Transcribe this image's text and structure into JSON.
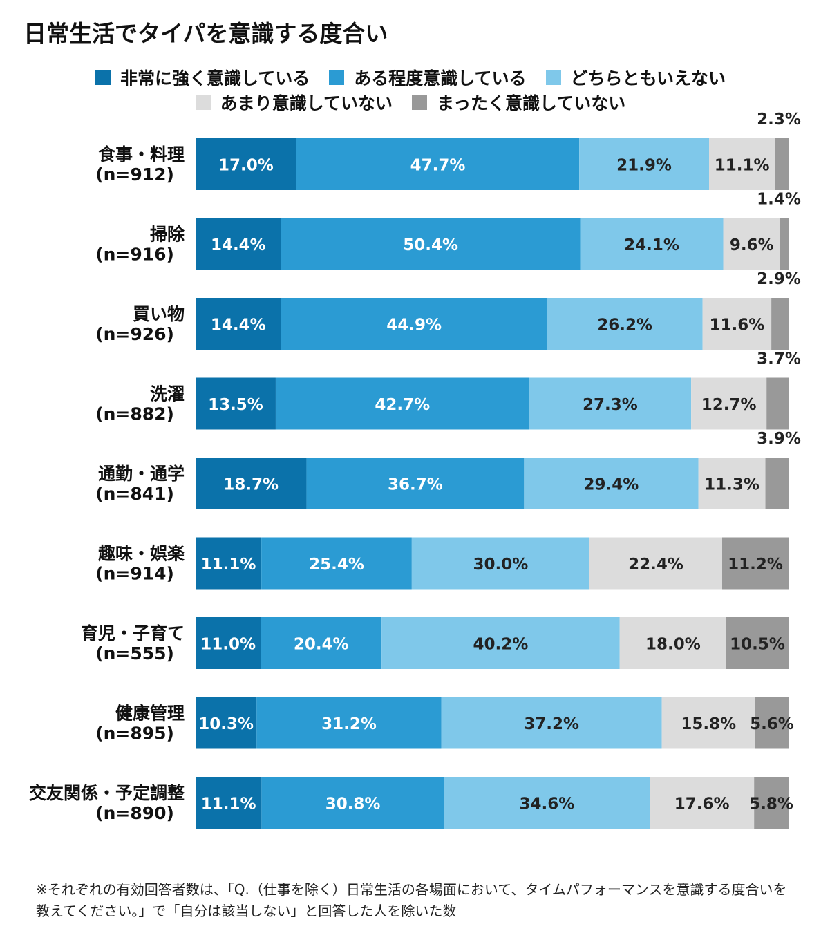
{
  "chart_data": {
    "type": "bar",
    "orientation": "horizontal",
    "stacked": true,
    "percent": true,
    "title": "日常生活でタイパを意識する度合い",
    "series_names": [
      "非常に強く意識している",
      "ある程度意識している",
      "どちらともいえない",
      "あまり意識していない",
      "まったく意識していない"
    ],
    "colors": [
      "#0b72aa",
      "#2b9bd3",
      "#7fc8ea",
      "#dcdcdc",
      "#999999"
    ],
    "label_colors": [
      "#ffffff",
      "#ffffff",
      "#222222",
      "#222222",
      "#222222"
    ],
    "rows": [
      {
        "name": "食事・料理",
        "n": "(n=912)",
        "values": [
          17.0,
          47.7,
          21.9,
          11.1,
          2.3
        ],
        "labels": [
          "17.0%",
          "47.7%",
          "21.9%",
          "11.1%",
          "2.3%"
        ],
        "last_outside": true
      },
      {
        "name": "掃除",
        "n": "(n=916)",
        "values": [
          14.4,
          50.4,
          24.1,
          9.6,
          1.4
        ],
        "labels": [
          "14.4%",
          "50.4%",
          "24.1%",
          "9.6%",
          "1.4%"
        ],
        "last_outside": true
      },
      {
        "name": "買い物",
        "n": "(n=926)",
        "values": [
          14.4,
          44.9,
          26.2,
          11.6,
          2.9
        ],
        "labels": [
          "14.4%",
          "44.9%",
          "26.2%",
          "11.6%",
          "2.9%"
        ],
        "last_outside": true
      },
      {
        "name": "洗濯",
        "n": "(n=882)",
        "values": [
          13.5,
          42.7,
          27.3,
          12.7,
          3.7
        ],
        "labels": [
          "13.5%",
          "42.7%",
          "27.3%",
          "12.7%",
          "3.7%"
        ],
        "last_outside": true
      },
      {
        "name": "通勤・通学",
        "n": "(n=841)",
        "values": [
          18.7,
          36.7,
          29.4,
          11.3,
          3.9
        ],
        "labels": [
          "18.7%",
          "36.7%",
          "29.4%",
          "11.3%",
          "3.9%"
        ],
        "last_outside": true
      },
      {
        "name": "趣味・娯楽",
        "n": "(n=914)",
        "values": [
          11.1,
          25.4,
          30.0,
          22.4,
          11.2
        ],
        "labels": [
          "11.1%",
          "25.4%",
          "30.0%",
          "22.4%",
          "11.2%"
        ],
        "last_outside": false
      },
      {
        "name": "育児・子育て",
        "n": "(n=555)",
        "values": [
          11.0,
          20.4,
          40.2,
          18.0,
          10.5
        ],
        "labels": [
          "11.0%",
          "20.4%",
          "40.2%",
          "18.0%",
          "10.5%"
        ],
        "last_outside": false
      },
      {
        "name": "健康管理",
        "n": "(n=895)",
        "values": [
          10.3,
          31.2,
          37.2,
          15.8,
          5.6
        ],
        "labels": [
          "10.3%",
          "31.2%",
          "37.2%",
          "15.8%",
          "5.6%"
        ],
        "last_outside": false
      },
      {
        "name": "交友関係・予定調整",
        "n": "(n=890)",
        "values": [
          11.1,
          30.8,
          34.6,
          17.6,
          5.8
        ],
        "labels": [
          "11.1%",
          "30.8%",
          "34.6%",
          "17.6%",
          "5.8%"
        ],
        "last_outside": false
      }
    ],
    "xlim": [
      0,
      100
    ]
  },
  "footnote": "※それぞれの有効回答者数は、「Q.（仕事を除く）日常生活の各場面において、タイムパフォーマンスを意識する度合いを教えてください。」で「自分は該当しない」と回答した人を除いた数"
}
